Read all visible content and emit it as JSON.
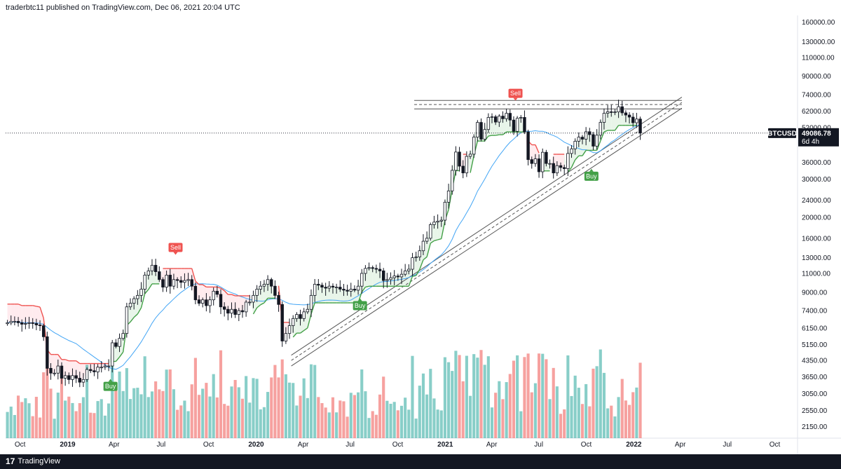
{
  "header": {
    "attribution": "traderbtc11 published on TradingView.com, Dec 06, 2021 20:04 UTC"
  },
  "footer": {
    "brand": "TradingView",
    "logo_text": "17"
  },
  "colors": {
    "up_candle": "#ffffff",
    "down_candle": "#131722",
    "up_volume": "#26a69a",
    "down_volume": "#ef5350",
    "supertrend_up": "#43a047",
    "supertrend_down": "#ef5350",
    "up_fill": "#e8f5e9",
    "down_fill": "#ffebee",
    "ma_line": "#42a5f5",
    "trendline": "#555555"
  },
  "chart_data": {
    "type": "candlestick",
    "symbol": "BTCUSD",
    "timeframe": "1W",
    "scale": "log",
    "ylim": [
      1900,
      172000
    ],
    "y_ticks": [
      2150,
      2550,
      3050,
      3650,
      4350,
      5150,
      6150,
      7400,
      9000,
      11000,
      13000,
      16000,
      20000,
      24000,
      30000,
      36000,
      44000,
      52000,
      62000,
      74000,
      90000,
      110000,
      130000,
      160000
    ],
    "y_tick_labels": [
      "2150.00",
      "2550.00",
      "3050.00",
      "3650.00",
      "4350.00",
      "5150.00",
      "6150.00",
      "7400.00",
      "9000.00",
      "11000.00",
      "13000.00",
      "16000.00",
      "20000.00",
      "24000.00",
      "30000.00",
      "36000.00",
      "44000.00",
      "52000.00",
      "62000.00",
      "74000.00",
      "90000.00",
      "110000.00",
      "130000.00",
      "160000.00"
    ],
    "x_ticks": [
      {
        "label": "Oct",
        "date": "2018-10-01"
      },
      {
        "label": "2019",
        "date": "2019-01-01",
        "bold": true
      },
      {
        "label": "Apr",
        "date": "2019-04-01"
      },
      {
        "label": "Jul",
        "date": "2019-07-01"
      },
      {
        "label": "Oct",
        "date": "2019-10-01"
      },
      {
        "label": "2020",
        "date": "2020-01-01",
        "bold": true
      },
      {
        "label": "Apr",
        "date": "2020-04-01"
      },
      {
        "label": "Jul",
        "date": "2020-07-01"
      },
      {
        "label": "Oct",
        "date": "2020-10-01"
      },
      {
        "label": "2021",
        "date": "2021-01-01",
        "bold": true
      },
      {
        "label": "Apr",
        "date": "2021-04-01"
      },
      {
        "label": "Jul",
        "date": "2021-07-01"
      },
      {
        "label": "Oct",
        "date": "2021-10-01"
      },
      {
        "label": "2022",
        "date": "2022-01-01",
        "bold": true
      },
      {
        "label": "Apr",
        "date": "2022-04-01"
      },
      {
        "label": "Jul",
        "date": "2022-07-01"
      },
      {
        "label": "Oct",
        "date": "2022-10-01"
      }
    ],
    "x_start": "2018-09-03",
    "x_end": "2022-11-14",
    "weekly_close": [
      6500,
      6600,
      6600,
      6500,
      6400,
      6450,
      6500,
      6450,
      6350,
      6300,
      5600,
      4000,
      3800,
      3800,
      4100,
      3600,
      3700,
      3550,
      3700,
      3600,
      3450,
      3550,
      3950,
      3900,
      3850,
      4050,
      4050,
      4100,
      4100,
      5250,
      5050,
      5500,
      5800,
      7700,
      8000,
      8400,
      8700,
      9300,
      10800,
      11300,
      12000,
      11200,
      10300,
      9500,
      10800,
      9600,
      10300,
      10200,
      10000,
      10200,
      10300,
      9600,
      8300,
      8000,
      8300,
      7800,
      8300,
      9100,
      8800,
      7700,
      7500,
      7200,
      7500,
      7100,
      7400,
      7300,
      8100,
      8100,
      8700,
      9300,
      9600,
      9800,
      10300,
      9600,
      8700,
      7900,
      5350,
      5800,
      6300,
      6800,
      7100,
      6800,
      7300,
      7500,
      8700,
      9800,
      9700,
      9500,
      9400,
      9600,
      9500,
      9500,
      9300,
      9200,
      9100,
      9300,
      9200,
      9600,
      11000,
      11600,
      11700,
      11600,
      11500,
      11300,
      10200,
      10300,
      10500,
      10700,
      10600,
      10900,
      11300,
      11500,
      13000,
      13100,
      14000,
      15500,
      16000,
      18500,
      19000,
      19200,
      19400,
      23500,
      26500,
      33000,
      40100,
      34500,
      32100,
      38300,
      39200,
      47000,
      55000,
      46000,
      51000,
      58000,
      58400,
      55200,
      58800,
      57200,
      60600,
      56400,
      50000,
      57500,
      58000,
      49700,
      37000,
      35500,
      37300,
      32500,
      40000,
      35500,
      35500,
      32100,
      34700,
      34000,
      33600,
      39500,
      41500,
      45000,
      47000,
      46000,
      49800,
      48300,
      42700,
      48000,
      55000,
      60600,
      61600,
      61300,
      61500,
      65000,
      60900,
      59500,
      58200,
      54800,
      57000,
      49086
    ],
    "current_price": "49086.78",
    "current_price_tag_symbol": "BTCUSD",
    "current_price_tag_time": "6d 4h",
    "signals": [
      {
        "label": "Sell",
        "date": "2019-07-29",
        "type": "sell",
        "price": 14500
      },
      {
        "label": "Buy",
        "date": "2019-03-25",
        "type": "buy",
        "price": 3300
      },
      {
        "label": "Buy",
        "date": "2020-07-20",
        "type": "buy",
        "price": 7800
      },
      {
        "label": "Sell",
        "date": "2021-05-17",
        "type": "sell",
        "price": 75000
      },
      {
        "label": "Buy",
        "date": "2021-10-11",
        "type": "buy",
        "price": 31000
      }
    ]
  }
}
